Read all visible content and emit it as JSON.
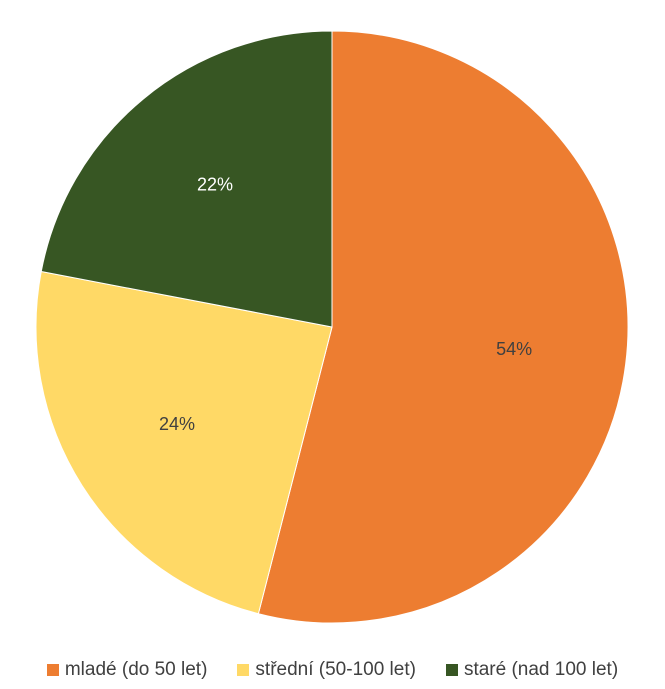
{
  "chart_data": {
    "type": "pie",
    "title": "",
    "slices": [
      {
        "label": "mladé (do 50 let)",
        "value": 54,
        "display": "54%",
        "color": "#ED7D31",
        "label_color": "#404040"
      },
      {
        "label": "střední (50-100 let)",
        "value": 24,
        "display": "24%",
        "color": "#FFD966",
        "label_color": "#404040"
      },
      {
        "label": "staré (nad 100 let)",
        "value": 22,
        "display": "22%",
        "color": "#375623",
        "label_color": "#FFFFFF"
      }
    ],
    "start_angle_deg": 0,
    "direction": "clockwise",
    "legend": {
      "position": "bottom"
    }
  }
}
